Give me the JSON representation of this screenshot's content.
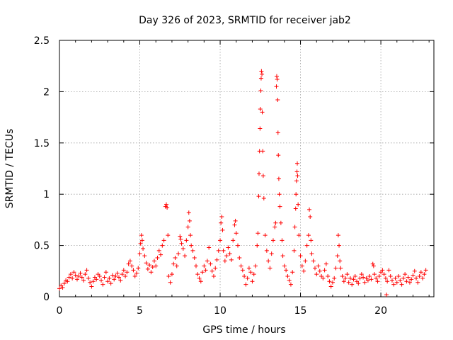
{
  "chart_data": {
    "type": "scatter",
    "title": "Day 326 of 2023, SRMTID for receiver jab2",
    "xlabel": "GPS time / hours",
    "ylabel": "SRMTID / TECUs",
    "xlim": [
      0,
      23.3
    ],
    "ylim": [
      0,
      2.5
    ],
    "x_ticks": [
      0,
      5,
      10,
      15,
      20
    ],
    "x_tick_labels": [
      "0",
      "5",
      "10",
      "15",
      "20"
    ],
    "y_ticks": [
      0,
      0.5,
      1,
      1.5,
      2,
      2.5
    ],
    "y_tick_labels": [
      "0",
      "0.5",
      "1",
      "1.5",
      "2",
      "2.5"
    ],
    "grid": true,
    "marker": "+",
    "color": "#ff0000",
    "series": [
      {
        "name": "jab2",
        "points": [
          [
            0.0,
            0.08
          ],
          [
            0.1,
            0.11
          ],
          [
            0.2,
            0.09
          ],
          [
            0.3,
            0.13
          ],
          [
            0.4,
            0.16
          ],
          [
            0.5,
            0.15
          ],
          [
            0.6,
            0.19
          ],
          [
            0.7,
            0.22
          ],
          [
            0.8,
            0.18
          ],
          [
            0.9,
            0.24
          ],
          [
            1.0,
            0.21
          ],
          [
            1.1,
            0.17
          ],
          [
            1.2,
            0.2
          ],
          [
            1.3,
            0.23
          ],
          [
            1.4,
            0.19
          ],
          [
            1.5,
            0.16
          ],
          [
            1.6,
            0.22
          ],
          [
            1.7,
            0.26
          ],
          [
            1.8,
            0.18
          ],
          [
            1.9,
            0.14
          ],
          [
            2.0,
            0.1
          ],
          [
            2.1,
            0.15
          ],
          [
            2.2,
            0.19
          ],
          [
            2.3,
            0.17
          ],
          [
            2.4,
            0.22
          ],
          [
            2.5,
            0.2
          ],
          [
            2.6,
            0.16
          ],
          [
            2.7,
            0.12
          ],
          [
            2.8,
            0.19
          ],
          [
            2.9,
            0.24
          ],
          [
            3.0,
            0.15
          ],
          [
            3.1,
            0.18
          ],
          [
            3.2,
            0.13
          ],
          [
            3.3,
            0.21
          ],
          [
            3.4,
            0.17
          ],
          [
            3.5,
            0.2
          ],
          [
            3.6,
            0.23
          ],
          [
            3.7,
            0.19
          ],
          [
            3.8,
            0.16
          ],
          [
            3.9,
            0.22
          ],
          [
            4.0,
            0.26
          ],
          [
            4.1,
            0.2
          ],
          [
            4.2,
            0.24
          ],
          [
            4.3,
            0.32
          ],
          [
            4.4,
            0.35
          ],
          [
            4.5,
            0.3
          ],
          [
            4.6,
            0.26
          ],
          [
            4.7,
            0.2
          ],
          [
            4.8,
            0.23
          ],
          [
            4.9,
            0.28
          ],
          [
            5.0,
            0.42
          ],
          [
            5.05,
            0.52
          ],
          [
            5.1,
            0.6
          ],
          [
            5.15,
            0.55
          ],
          [
            5.2,
            0.47
          ],
          [
            5.3,
            0.4
          ],
          [
            5.4,
            0.33
          ],
          [
            5.5,
            0.27
          ],
          [
            5.6,
            0.31
          ],
          [
            5.7,
            0.24
          ],
          [
            5.8,
            0.29
          ],
          [
            5.9,
            0.35
          ],
          [
            6.0,
            0.3
          ],
          [
            6.1,
            0.38
          ],
          [
            6.2,
            0.45
          ],
          [
            6.3,
            0.41
          ],
          [
            6.4,
            0.5
          ],
          [
            6.5,
            0.55
          ],
          [
            6.6,
            0.88
          ],
          [
            6.65,
            0.9
          ],
          [
            6.7,
            0.87
          ],
          [
            6.75,
            0.6
          ],
          [
            6.8,
            0.2
          ],
          [
            6.9,
            0.14
          ],
          [
            7.0,
            0.22
          ],
          [
            7.1,
            0.32
          ],
          [
            7.2,
            0.38
          ],
          [
            7.3,
            0.3
          ],
          [
            7.4,
            0.42
          ],
          [
            7.5,
            0.59
          ],
          [
            7.55,
            0.56
          ],
          [
            7.6,
            0.52
          ],
          [
            7.7,
            0.47
          ],
          [
            7.8,
            0.4
          ],
          [
            7.9,
            0.55
          ],
          [
            8.0,
            0.68
          ],
          [
            8.05,
            0.82
          ],
          [
            8.1,
            0.74
          ],
          [
            8.15,
            0.6
          ],
          [
            8.2,
            0.5
          ],
          [
            8.3,
            0.45
          ],
          [
            8.4,
            0.38
          ],
          [
            8.5,
            0.3
          ],
          [
            8.6,
            0.22
          ],
          [
            8.7,
            0.18
          ],
          [
            8.8,
            0.15
          ],
          [
            8.9,
            0.24
          ],
          [
            9.0,
            0.3
          ],
          [
            9.1,
            0.26
          ],
          [
            9.2,
            0.35
          ],
          [
            9.3,
            0.48
          ],
          [
            9.4,
            0.32
          ],
          [
            9.5,
            0.25
          ],
          [
            9.6,
            0.2
          ],
          [
            9.7,
            0.28
          ],
          [
            9.8,
            0.36
          ],
          [
            9.9,
            0.45
          ],
          [
            10.0,
            0.55
          ],
          [
            10.05,
            0.72
          ],
          [
            10.1,
            0.78
          ],
          [
            10.15,
            0.65
          ],
          [
            10.2,
            0.45
          ],
          [
            10.3,
            0.35
          ],
          [
            10.4,
            0.4
          ],
          [
            10.5,
            0.48
          ],
          [
            10.6,
            0.42
          ],
          [
            10.7,
            0.36
          ],
          [
            10.8,
            0.55
          ],
          [
            10.9,
            0.7
          ],
          [
            10.95,
            0.74
          ],
          [
            11.0,
            0.62
          ],
          [
            11.1,
            0.5
          ],
          [
            11.2,
            0.38
          ],
          [
            11.3,
            0.3
          ],
          [
            11.4,
            0.26
          ],
          [
            11.5,
            0.2
          ],
          [
            11.6,
            0.12
          ],
          [
            11.7,
            0.18
          ],
          [
            11.8,
            0.28
          ],
          [
            11.9,
            0.24
          ],
          [
            12.0,
            0.15
          ],
          [
            12.1,
            0.22
          ],
          [
            12.2,
            0.3
          ],
          [
            12.3,
            0.5
          ],
          [
            12.35,
            0.62
          ],
          [
            12.4,
            0.98
          ],
          [
            12.42,
            1.2
          ],
          [
            12.45,
            1.42
          ],
          [
            12.48,
            1.64
          ],
          [
            12.5,
            1.83
          ],
          [
            12.53,
            2.01
          ],
          [
            12.55,
            2.13
          ],
          [
            12.57,
            2.2
          ],
          [
            12.6,
            2.17
          ],
          [
            12.62,
            1.8
          ],
          [
            12.65,
            1.42
          ],
          [
            12.68,
            1.18
          ],
          [
            12.72,
            0.96
          ],
          [
            12.8,
            0.6
          ],
          [
            12.9,
            0.45
          ],
          [
            13.0,
            0.35
          ],
          [
            13.1,
            0.28
          ],
          [
            13.2,
            0.42
          ],
          [
            13.3,
            0.55
          ],
          [
            13.4,
            0.68
          ],
          [
            13.45,
            0.72
          ],
          [
            13.5,
            2.05
          ],
          [
            13.52,
            2.15
          ],
          [
            13.55,
            2.12
          ],
          [
            13.58,
            1.92
          ],
          [
            13.6,
            1.6
          ],
          [
            13.62,
            1.38
          ],
          [
            13.65,
            1.15
          ],
          [
            13.68,
            1.0
          ],
          [
            13.72,
            0.88
          ],
          [
            13.78,
            0.72
          ],
          [
            13.85,
            0.55
          ],
          [
            13.9,
            0.4
          ],
          [
            14.0,
            0.3
          ],
          [
            14.1,
            0.26
          ],
          [
            14.2,
            0.2
          ],
          [
            14.3,
            0.16
          ],
          [
            14.4,
            0.12
          ],
          [
            14.5,
            0.24
          ],
          [
            14.6,
            0.45
          ],
          [
            14.65,
            0.68
          ],
          [
            14.7,
            0.86
          ],
          [
            14.72,
            1.0
          ],
          [
            14.75,
            1.13
          ],
          [
            14.78,
            1.22
          ],
          [
            14.8,
            1.3
          ],
          [
            14.82,
            1.18
          ],
          [
            14.85,
            0.9
          ],
          [
            14.9,
            0.6
          ],
          [
            15.0,
            0.4
          ],
          [
            15.1,
            0.3
          ],
          [
            15.2,
            0.25
          ],
          [
            15.3,
            0.35
          ],
          [
            15.4,
            0.5
          ],
          [
            15.5,
            0.6
          ],
          [
            15.55,
            0.85
          ],
          [
            15.6,
            0.78
          ],
          [
            15.65,
            0.55
          ],
          [
            15.7,
            0.42
          ],
          [
            15.8,
            0.35
          ],
          [
            15.9,
            0.28
          ],
          [
            16.0,
            0.22
          ],
          [
            16.1,
            0.3
          ],
          [
            16.2,
            0.25
          ],
          [
            16.3,
            0.2
          ],
          [
            16.4,
            0.18
          ],
          [
            16.5,
            0.26
          ],
          [
            16.6,
            0.32
          ],
          [
            16.7,
            0.2
          ],
          [
            16.8,
            0.15
          ],
          [
            16.9,
            0.1
          ],
          [
            17.0,
            0.14
          ],
          [
            17.1,
            0.18
          ],
          [
            17.2,
            0.28
          ],
          [
            17.3,
            0.4
          ],
          [
            17.35,
            0.6
          ],
          [
            17.4,
            0.5
          ],
          [
            17.45,
            0.35
          ],
          [
            17.5,
            0.28
          ],
          [
            17.6,
            0.2
          ],
          [
            17.7,
            0.15
          ],
          [
            17.8,
            0.18
          ],
          [
            17.9,
            0.22
          ],
          [
            18.0,
            0.14
          ],
          [
            18.1,
            0.18
          ],
          [
            18.2,
            0.12
          ],
          [
            18.3,
            0.17
          ],
          [
            18.4,
            0.2
          ],
          [
            18.5,
            0.15
          ],
          [
            18.6,
            0.13
          ],
          [
            18.7,
            0.18
          ],
          [
            18.8,
            0.22
          ],
          [
            18.9,
            0.19
          ],
          [
            19.0,
            0.14
          ],
          [
            19.1,
            0.18
          ],
          [
            19.2,
            0.16
          ],
          [
            19.3,
            0.2
          ],
          [
            19.4,
            0.17
          ],
          [
            19.5,
            0.32
          ],
          [
            19.55,
            0.3
          ],
          [
            19.6,
            0.22
          ],
          [
            19.7,
            0.18
          ],
          [
            19.8,
            0.15
          ],
          [
            19.9,
            0.2
          ],
          [
            20.0,
            0.24
          ],
          [
            20.1,
            0.26
          ],
          [
            20.2,
            0.22
          ],
          [
            20.3,
            0.18
          ],
          [
            20.35,
            0.02
          ],
          [
            20.4,
            0.15
          ],
          [
            20.5,
            0.26
          ],
          [
            20.6,
            0.2
          ],
          [
            20.7,
            0.16
          ],
          [
            20.8,
            0.12
          ],
          [
            20.9,
            0.18
          ],
          [
            21.0,
            0.14
          ],
          [
            21.1,
            0.2
          ],
          [
            21.2,
            0.16
          ],
          [
            21.3,
            0.12
          ],
          [
            21.4,
            0.18
          ],
          [
            21.5,
            0.22
          ],
          [
            21.6,
            0.15
          ],
          [
            21.7,
            0.19
          ],
          [
            21.8,
            0.14
          ],
          [
            21.9,
            0.17
          ],
          [
            22.0,
            0.21
          ],
          [
            22.1,
            0.25
          ],
          [
            22.2,
            0.18
          ],
          [
            22.3,
            0.14
          ],
          [
            22.4,
            0.2
          ],
          [
            22.5,
            0.24
          ],
          [
            22.6,
            0.18
          ],
          [
            22.7,
            0.22
          ],
          [
            22.8,
            0.26
          ]
        ]
      }
    ]
  }
}
